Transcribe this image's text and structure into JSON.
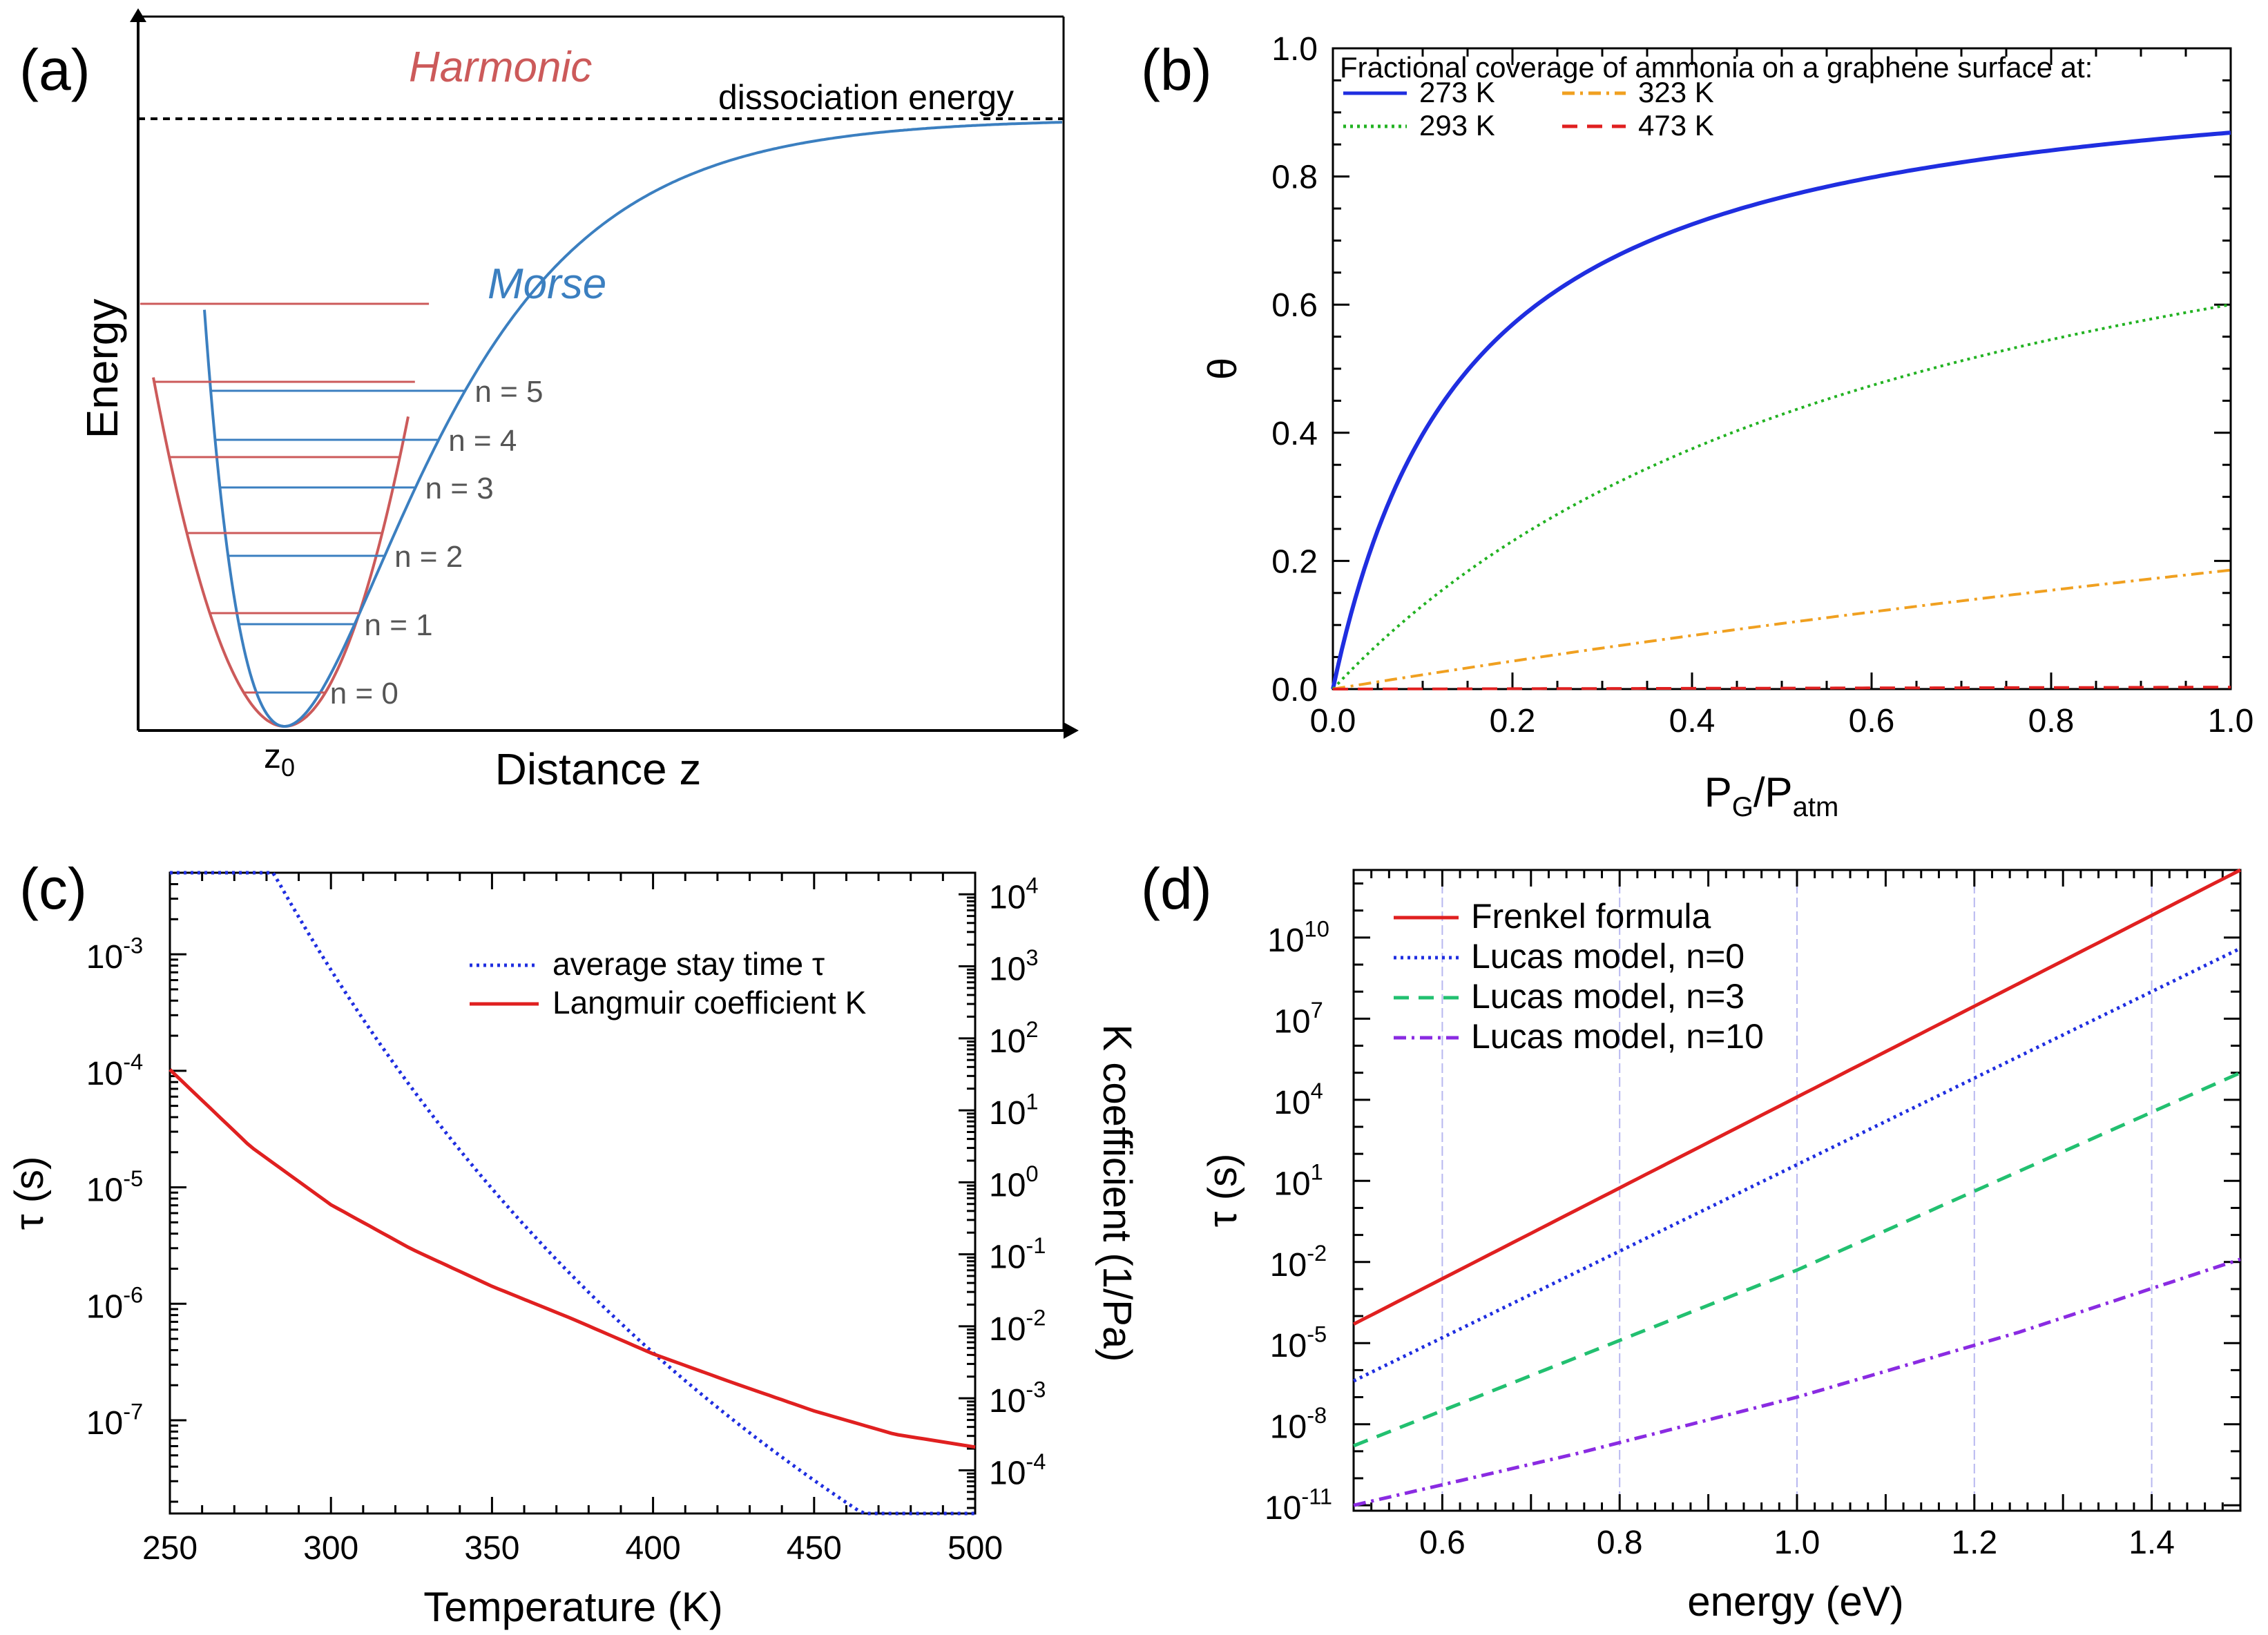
{
  "chart_data": [
    {
      "panel": "(a)",
      "type": "line",
      "title": "",
      "xlabel": "Distance z",
      "ylabel": "Energy",
      "x_tick_label": "z",
      "x_tick_sub": "0",
      "dissociation_label": "dissociation energy",
      "series": [
        {
          "name": "Harmonic",
          "color": "#cc5a5a",
          "levels": [
            0,
            1,
            2,
            3,
            4,
            5
          ]
        },
        {
          "name": "Morse",
          "color": "#3b7fc0",
          "levels": [
            0,
            1,
            2,
            3,
            4,
            5
          ]
        }
      ],
      "level_labels": [
        "n = 0",
        "n = 1",
        "n = 2",
        "n = 3",
        "n = 4",
        "n = 5"
      ],
      "morse_well_depth": 1.0
    },
    {
      "panel": "(b)",
      "type": "line",
      "title": "Fractional coverage of ammonia on a graphene surface at:",
      "xlabel": "P",
      "xlabel_sub1": "G",
      "xlabel_mid": "/P",
      "xlabel_sub2": "atm",
      "ylabel": "θ",
      "xlim": [
        0,
        1
      ],
      "ylim": [
        0,
        1
      ],
      "x_ticks": [
        "0.0",
        "0.2",
        "0.4",
        "0.6",
        "0.8",
        "1.0"
      ],
      "y_ticks": [
        "0.0",
        "0.2",
        "0.4",
        "0.6",
        "0.8",
        "1.0"
      ],
      "series": [
        {
          "name": "273 K",
          "color": "#1f2ee0",
          "style": "solid",
          "kappa": 6.6
        },
        {
          "name": "293 K",
          "color": "#22b222",
          "style": "dotted",
          "kappa": 1.5
        },
        {
          "name": "323 K",
          "color": "#f0a020",
          "style": "dashdot",
          "kappa": 0.228
        },
        {
          "name": "473 K",
          "color": "#e02020",
          "style": "dashed",
          "kappa": 0.003
        }
      ]
    },
    {
      "panel": "(c)",
      "type": "line",
      "xlabel": "Temperature (K)",
      "ylabel": "τ (s)",
      "y2label": "K coefficient (1/Pa)",
      "xlim": [
        250,
        500
      ],
      "ylim_log10": [
        -7.8,
        -2.3
      ],
      "y2lim_log10": [
        -4.6,
        4.3
      ],
      "x_ticks": [
        "250",
        "300",
        "350",
        "400",
        "450",
        "500"
      ],
      "y_ticks": [
        {
          "exp": -7
        },
        {
          "exp": -6
        },
        {
          "exp": -5
        },
        {
          "exp": -4
        },
        {
          "exp": -3
        }
      ],
      "y2_ticks": [
        {
          "base": "10",
          "exp": "-4",
          "val": -4
        },
        {
          "base": "10",
          "exp": "-3",
          "val": -3
        },
        {
          "base": "10",
          "exp": "-2",
          "val": -2
        },
        {
          "base": "10",
          "exp": "-1",
          "val": -1
        },
        {
          "base": "10",
          "exp": "0",
          "val": 0
        },
        {
          "base": "10",
          "exp": "1",
          "val": 1
        },
        {
          "base": "10",
          "exp": "2",
          "val": 2
        },
        {
          "base": "10",
          "exp": "3",
          "val": 3
        },
        {
          "base": "10",
          "exp": "4",
          "val": 4
        }
      ],
      "tau_model": {
        "E_over_k": 9080,
        "T0": 400,
        "log10_at_T0": -6.42
      },
      "series": [
        {
          "name": "average stay time τ",
          "color": "#1f2ee0",
          "style": "dotted",
          "axis": "left",
          "x": [
            250,
            275,
            300,
            325,
            350,
            375,
            400,
            425,
            450,
            475,
            500
          ],
          "log10_y": [
            -2.26,
            -2.8,
            -3.38,
            -3.95,
            -4.55,
            -5.1,
            -5.55,
            -6.0,
            -6.4,
            -6.8,
            -7.15
          ]
        },
        {
          "name": "Langmuir coefficient K",
          "color": "#e02020",
          "style": "solid",
          "axis": "left",
          "x": [
            250,
            275,
            300,
            325,
            350,
            375,
            400,
            425,
            450,
            475,
            500
          ],
          "log10_y": [
            -3.99,
            -4.65,
            -5.15,
            -5.53,
            -5.85,
            -6.13,
            -6.43,
            -6.68,
            -6.92,
            -7.12,
            -7.23
          ]
        }
      ]
    },
    {
      "panel": "(d)",
      "type": "line",
      "xlabel": "energy (eV)",
      "ylabel": "τ (s)",
      "xlim": [
        0.5,
        1.5
      ],
      "ylim_log10": [
        -11.2,
        12.5
      ],
      "x_ticks": [
        "0.6",
        "0.8",
        "1.0",
        "1.2",
        "1.4"
      ],
      "y_ticks": [
        {
          "base": "10",
          "exp": "-11",
          "val": -11
        },
        {
          "base": "10",
          "exp": "-8",
          "val": -8
        },
        {
          "base": "10",
          "exp": "-5",
          "val": -5
        },
        {
          "base": "10",
          "exp": "-2",
          "val": -2
        },
        {
          "base": "10",
          "exp": "1",
          "val": 1
        },
        {
          "base": "10",
          "exp": "4",
          "val": 4
        },
        {
          "base": "10",
          "exp": "7",
          "val": 7
        },
        {
          "base": "10",
          "exp": "10",
          "val": 10
        }
      ],
      "series": [
        {
          "name": "Frenkel formula",
          "color": "#e02020",
          "style": "solid",
          "x": [
            0.5,
            1.5
          ],
          "log10_y": [
            -4.3,
            12.5
          ]
        },
        {
          "name": "Lucas model,  n=0",
          "color": "#1f2ee0",
          "style": "dotted",
          "x": [
            0.5,
            1.0,
            1.5
          ],
          "log10_y": [
            -6.4,
            1.6,
            9.6
          ]
        },
        {
          "name": "Lucas model,  n=3",
          "color": "#22c070",
          "style": "dashed",
          "x": [
            0.5,
            1.0,
            1.5
          ],
          "log10_y": [
            -8.8,
            -2.3,
            5.0
          ]
        },
        {
          "name": "Lucas model,  n=10",
          "color": "#8a2be2",
          "style": "dashdot",
          "x": [
            0.5,
            0.75,
            1.0,
            1.25,
            1.5
          ],
          "log10_y": [
            -11.0,
            -9.1,
            -7.0,
            -4.6,
            -1.9
          ]
        }
      ]
    }
  ],
  "panel_labels": [
    "(a)",
    "(b)",
    "(c)",
    "(d)"
  ]
}
